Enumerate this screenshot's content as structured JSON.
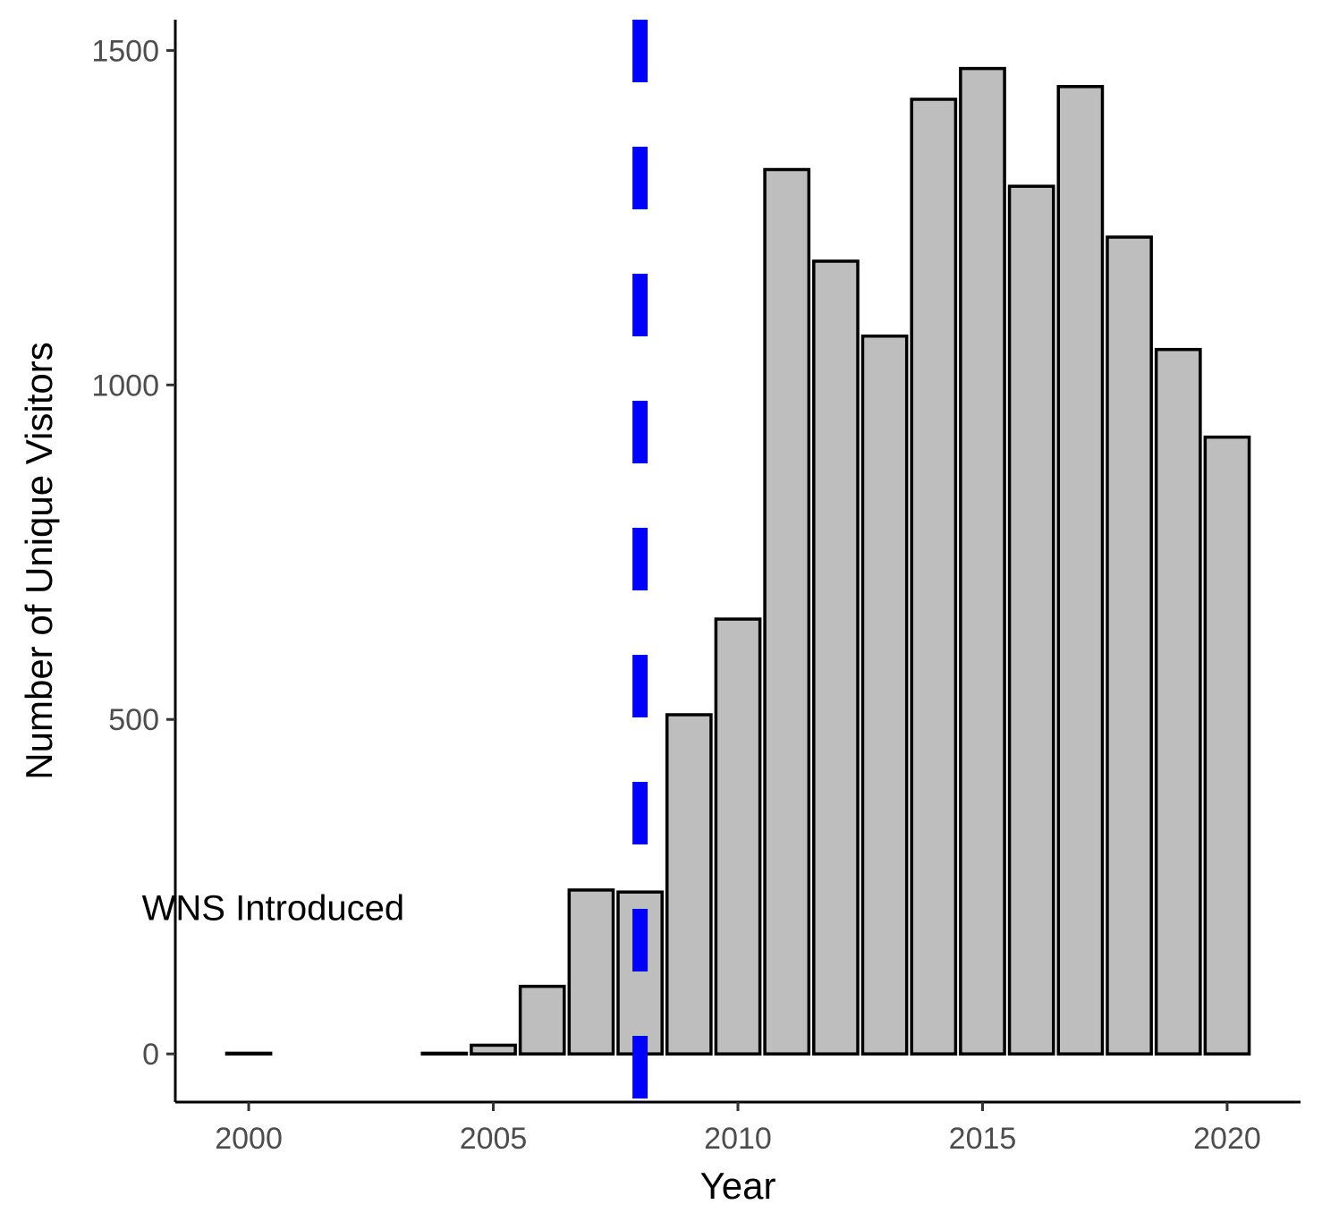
{
  "chart_data": {
    "type": "bar",
    "title": "",
    "xlabel": "Year",
    "ylabel": "Number of Unique Visitors",
    "x": [
      2000,
      2004,
      2005,
      2006,
      2007,
      2008,
      2009,
      2010,
      2011,
      2012,
      2013,
      2014,
      2015,
      2016,
      2017,
      2018,
      2019,
      2020
    ],
    "values": [
      1,
      1,
      13,
      101,
      245,
      242,
      507,
      650,
      1322,
      1185,
      1073,
      1427,
      1473,
      1297,
      1446,
      1221,
      1053,
      922
    ],
    "xlim": [
      1998.5,
      2021.5
    ],
    "ylim": [
      -72,
      1546
    ],
    "xticks": [
      2000,
      2005,
      2010,
      2015,
      2020
    ],
    "yticks": [
      0,
      500,
      1000,
      1500
    ],
    "grid": false,
    "legend": "none",
    "bar_fill": "#bebebe",
    "bar_outline": "#000000",
    "reference_line": {
      "x": 2008,
      "color": "#0000ff",
      "style": "dashed"
    },
    "annotations": [
      {
        "text": "WNS Introduced",
        "x": 2000.5,
        "y": 200
      }
    ]
  }
}
